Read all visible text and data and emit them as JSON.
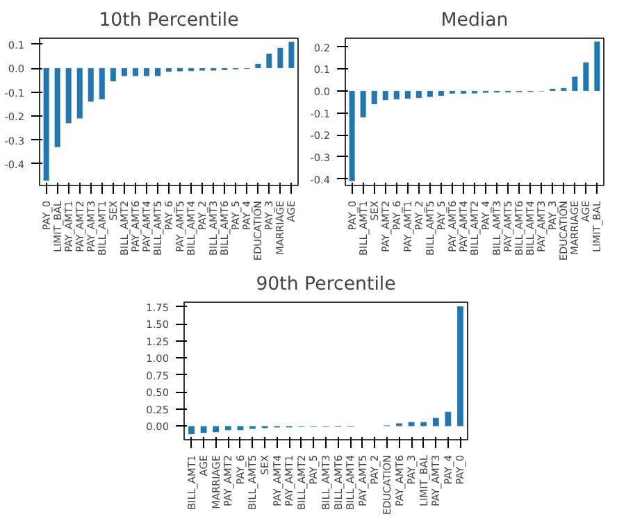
{
  "chart_data": [
    {
      "type": "bar",
      "title": "10th Percentile",
      "color": "#1f77b4",
      "grid": false,
      "categories": [
        "PAY_0",
        "LIMIT_BAL",
        "PAY_AMT1",
        "PAY_AMT2",
        "PAY_AMT3",
        "BILL_AMT1",
        "SEX",
        "BILL_AMT2",
        "PAY_AMT6",
        "PAY_AMT4",
        "BILL_AMT5",
        "PAY_6",
        "PAY_AMT5",
        "BILL_AMT4",
        "PAY_2",
        "BILL_AMT3",
        "BILL_AMT6",
        "PAY_5",
        "PAY_4",
        "EDUCATION",
        "PAY_3",
        "MARRIAGE",
        "AGE"
      ],
      "values": [
        -0.47,
        -0.33,
        -0.23,
        -0.21,
        -0.14,
        -0.13,
        -0.055,
        -0.033,
        -0.033,
        -0.033,
        -0.033,
        -0.015,
        -0.013,
        -0.012,
        -0.01,
        -0.01,
        -0.008,
        -0.005,
        -0.003,
        0.018,
        0.06,
        0.085,
        0.11
      ],
      "ylim": [
        -0.49,
        0.125
      ],
      "yticks": [
        -0.4,
        -0.3,
        -0.2,
        -0.1,
        {
          "value": 0,
          "label": "0.0"
        },
        0.1
      ]
    },
    {
      "type": "bar",
      "title": "Median",
      "color": "#1f77b4",
      "grid": false,
      "categories": [
        "PAY_0",
        "BILL_AMT1",
        "SEX",
        "PAY_AMT2",
        "PAY_6",
        "PAY_AMT1",
        "PAY_2",
        "BILL_AMT5",
        "PAY_5",
        "PAY_AMT6",
        "PAY_AMT4",
        "BILL_AMT2",
        "PAY_4",
        "BILL_AMT3",
        "PAY_AMT5",
        "BILL_AMT6",
        "BILL_AMT4",
        "PAY_AMT3",
        "PAY_3",
        "EDUCATION",
        "MARRIAGE",
        "AGE",
        "LIMIT_BAL"
      ],
      "values": [
        -0.41,
        -0.12,
        -0.06,
        -0.042,
        -0.038,
        -0.035,
        -0.032,
        -0.027,
        -0.022,
        -0.012,
        -0.012,
        -0.011,
        -0.008,
        -0.007,
        -0.006,
        -0.005,
        -0.004,
        -0.002,
        0.01,
        0.013,
        0.065,
        0.13,
        0.225
      ],
      "ylim": [
        -0.43,
        0.24
      ],
      "yticks": [
        -0.4,
        -0.3,
        -0.2,
        -0.1,
        {
          "value": 0,
          "label": "0.0"
        },
        0.1,
        0.2
      ]
    },
    {
      "type": "bar",
      "title": "90th Percentile",
      "color": "#1f77b4",
      "grid": false,
      "categories": [
        "BILL_AMT1",
        "AGE",
        "MARRIAGE",
        "PAY_AMT2",
        "PAY_6",
        "BILL_AMT5",
        "SEX",
        "PAY_AMT4",
        "PAY_AMT1",
        "BILL_AMT2",
        "PAY_5",
        "BILL_AMT3",
        "BILL_AMT6",
        "BILL_AMT4",
        "PAY_AMT5",
        "PAY_2",
        "EDUCATION",
        "PAY_AMT6",
        "PAY_3",
        "LIMIT_BAL",
        "PAY_AMT3",
        "PAY_4",
        "PAY_0"
      ],
      "values": [
        -0.12,
        -0.1,
        -0.09,
        -0.06,
        -0.06,
        -0.04,
        -0.03,
        -0.02,
        -0.02,
        -0.01,
        -0.01,
        -0.01,
        -0.01,
        -0.01,
        null,
        null,
        0.01,
        0.04,
        0.06,
        0.06,
        0.12,
        0.21,
        1.76
      ],
      "ylim": [
        -0.2,
        1.82
      ],
      "yticks": [
        {
          "value": 0,
          "label": "0.00"
        },
        {
          "value": 0.25,
          "label": "0.25"
        },
        {
          "value": 0.5,
          "label": "0.50"
        },
        {
          "value": 0.75,
          "label": "0.75"
        },
        {
          "value": 1,
          "label": "1.00"
        },
        {
          "value": 1.25,
          "label": "1.25"
        },
        {
          "value": 1.5,
          "label": "1.50"
        },
        1.75
      ]
    }
  ]
}
